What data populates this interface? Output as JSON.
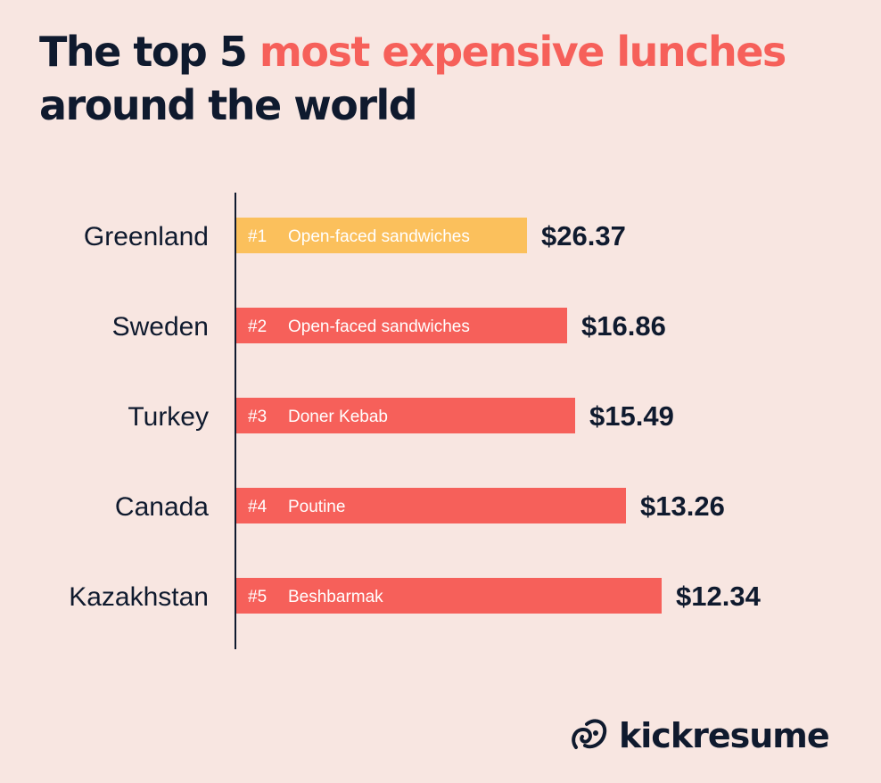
{
  "title": {
    "part1": "The top 5 ",
    "accent": "most expensive lunches",
    "line2": "around the world"
  },
  "colors": {
    "background": "#f8e6e1",
    "highlight": "#fbc05c",
    "bar": "#f6605a",
    "text": "#0f1a2e"
  },
  "chart_data": {
    "type": "bar",
    "orientation": "horizontal",
    "categories": [
      "Greenland",
      "Sweden",
      "Turkey",
      "Canada",
      "Kazakhstan"
    ],
    "ranks": [
      "#1",
      "#2",
      "#3",
      "#4",
      "#5"
    ],
    "dishes": [
      "Open-faced sandwiches",
      "Open-faced sandwiches",
      "Doner Kebab",
      "Poutine",
      "Beshbarmak"
    ],
    "values": [
      26.37,
      16.86,
      15.49,
      13.26,
      12.34
    ],
    "value_labels": [
      "$26.37",
      "$16.86",
      "$15.49",
      "$13.26",
      "$12.34"
    ],
    "bar_length_order": "reversed",
    "highlighted_index": 0,
    "grid": false
  },
  "brand": {
    "name": "kickresume",
    "icon": "kickresume-logo-icon"
  }
}
